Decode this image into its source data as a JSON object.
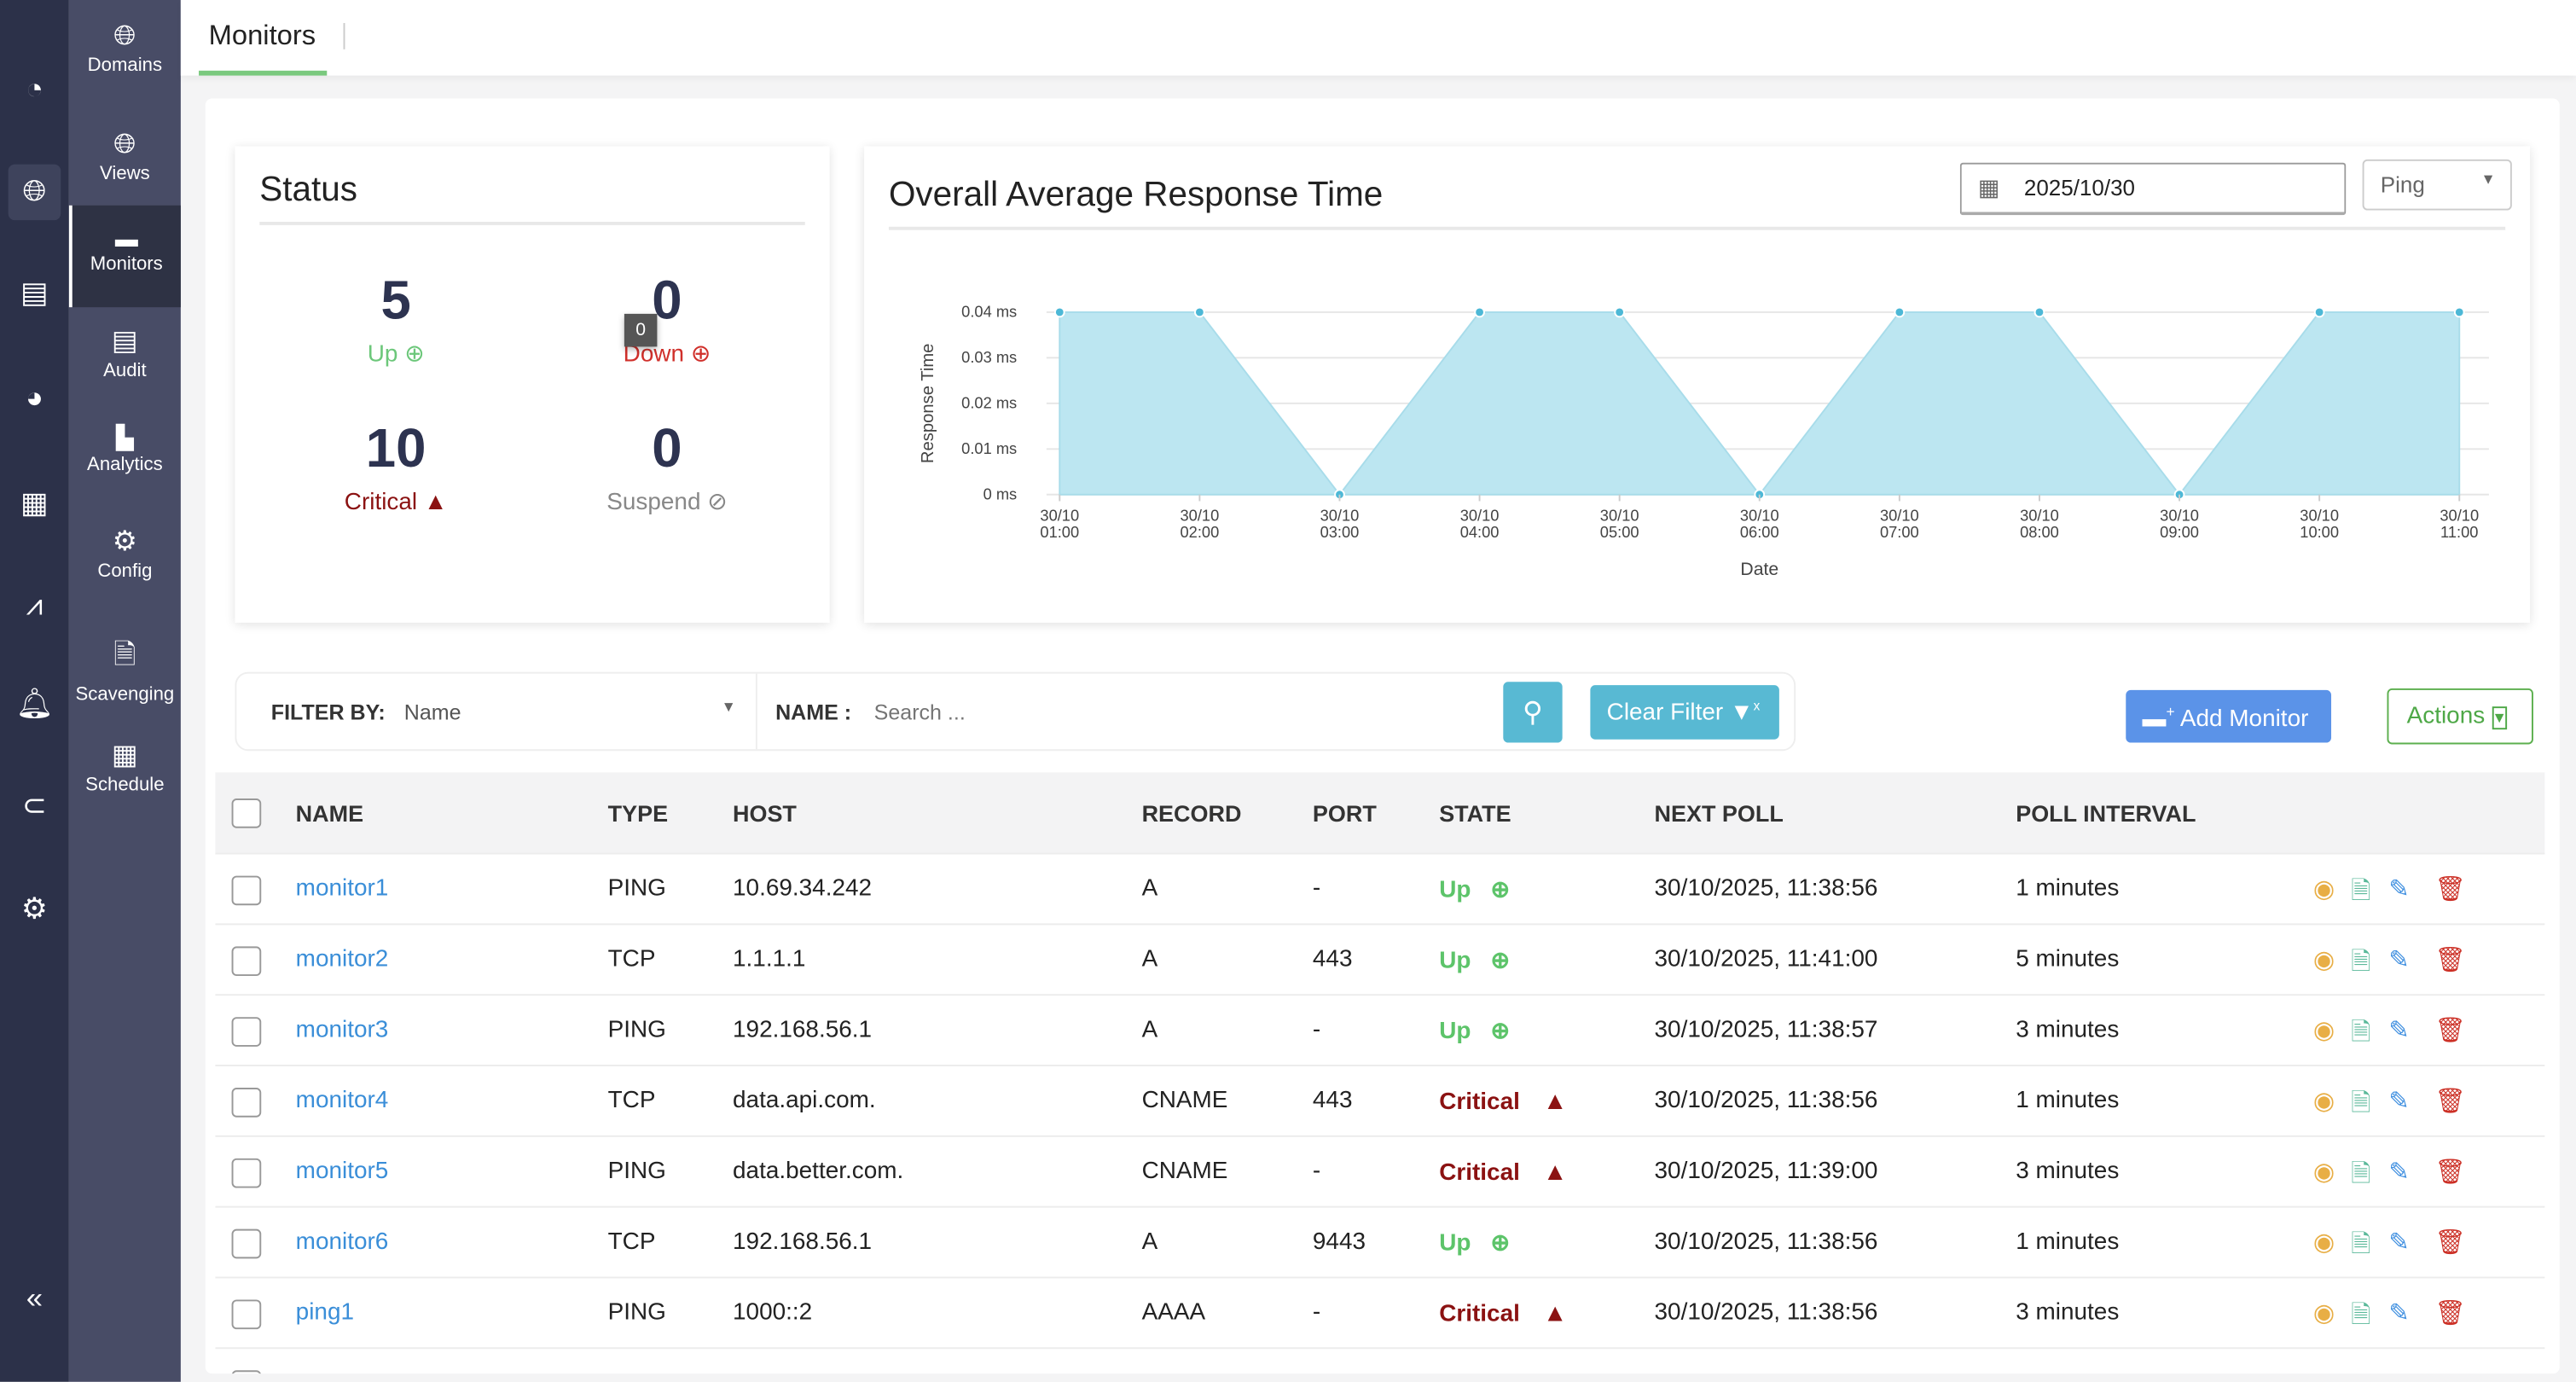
{
  "rail": {
    "icons": [
      "dashboard-icon",
      "dns-globe-icon",
      "network-map-icon",
      "reports-pie-icon",
      "server-security-icon",
      "alert-trend-icon",
      "bell-icon",
      "plugin-icon",
      "settings-wrench-icon"
    ],
    "collapse": "«"
  },
  "sidebar": {
    "items": [
      {
        "label": "Domains",
        "icon": "globe-com-icon"
      },
      {
        "label": "Views",
        "icon": "globe-views-icon"
      },
      {
        "label": "Monitors",
        "icon": "monitor-icon",
        "active": true
      },
      {
        "label": "Audit",
        "icon": "audit-icon"
      },
      {
        "label": "Analytics",
        "icon": "analytics-icon"
      },
      {
        "label": "Config",
        "icon": "gears-icon"
      },
      {
        "label": "Scavenging",
        "icon": "scavenging-icon"
      },
      {
        "label": "Schedule",
        "icon": "calendar-icon"
      }
    ]
  },
  "header": {
    "tab": "Monitors"
  },
  "status": {
    "title": "Status",
    "up": {
      "count": "5",
      "label": "Up",
      "color": "#6cc77a"
    },
    "down": {
      "count": "0",
      "label": "Down",
      "color": "#d0302b",
      "tooltip": "0"
    },
    "critical": {
      "count": "10",
      "label": "Critical",
      "color": "#8b1212"
    },
    "suspend": {
      "count": "0",
      "label": "Suspend",
      "color": "#888888"
    }
  },
  "response": {
    "title": "Overall Average Response Time",
    "date": "2025/10/30",
    "type": "Ping"
  },
  "chart_data": {
    "type": "area",
    "title": "Overall Average Response Time",
    "xlabel": "Date",
    "ylabel": "Response Time",
    "categories": [
      "30/10 01:00",
      "30/10 02:00",
      "30/10 03:00",
      "30/10 04:00",
      "30/10 05:00",
      "30/10 06:00",
      "30/10 07:00",
      "30/10 08:00",
      "30/10 09:00",
      "30/10 10:00",
      "30/10 11:00"
    ],
    "values": [
      0.04,
      0.04,
      0,
      0.04,
      0.04,
      0,
      0.04,
      0.04,
      0,
      0.04,
      0.04
    ],
    "yticks": [
      "0 ms",
      "0.01 ms",
      "0.02 ms",
      "0.03 ms",
      "0.04 ms"
    ],
    "ylim": [
      0,
      0.04
    ],
    "grid": true,
    "fill_color": "#bce6f1",
    "point_color": "#4db8d6"
  },
  "filter": {
    "by_label": "FILTER BY:",
    "by_value": "Name",
    "name_label": "NAME :",
    "search_placeholder": "Search ...",
    "clear": "Clear Filter"
  },
  "buttons": {
    "add": "Add Monitor",
    "actions": "Actions"
  },
  "table": {
    "columns": [
      "NAME",
      "TYPE",
      "HOST",
      "RECORD",
      "PORT",
      "STATE",
      "NEXT POLL",
      "POLL INTERVAL"
    ],
    "rows": [
      {
        "name": "monitor1",
        "type": "PING",
        "host": "10.69.34.242",
        "record": "A",
        "port": "-",
        "state": "Up",
        "next": "30/10/2025, 11:38:56",
        "interval": "1 minutes"
      },
      {
        "name": "monitor2",
        "type": "TCP",
        "host": "1.1.1.1",
        "record": "A",
        "port": "443",
        "state": "Up",
        "next": "30/10/2025, 11:41:00",
        "interval": "5 minutes"
      },
      {
        "name": "monitor3",
        "type": "PING",
        "host": "192.168.56.1",
        "record": "A",
        "port": "-",
        "state": "Up",
        "next": "30/10/2025, 11:38:57",
        "interval": "3 minutes"
      },
      {
        "name": "monitor4",
        "type": "TCP",
        "host": "data.api.com.",
        "record": "CNAME",
        "port": "443",
        "state": "Critical",
        "next": "30/10/2025, 11:38:56",
        "interval": "1 minutes"
      },
      {
        "name": "monitor5",
        "type": "PING",
        "host": "data.better.com.",
        "record": "CNAME",
        "port": "-",
        "state": "Critical",
        "next": "30/10/2025, 11:39:00",
        "interval": "3 minutes"
      },
      {
        "name": "monitor6",
        "type": "TCP",
        "host": "192.168.56.1",
        "record": "A",
        "port": "9443",
        "state": "Up",
        "next": "30/10/2025, 11:38:56",
        "interval": "1 minutes"
      },
      {
        "name": "ping1",
        "type": "PING",
        "host": "1000::2",
        "record": "AAAA",
        "port": "-",
        "state": "Critical",
        "next": "30/10/2025, 11:38:56",
        "interval": "3 minutes"
      }
    ]
  }
}
